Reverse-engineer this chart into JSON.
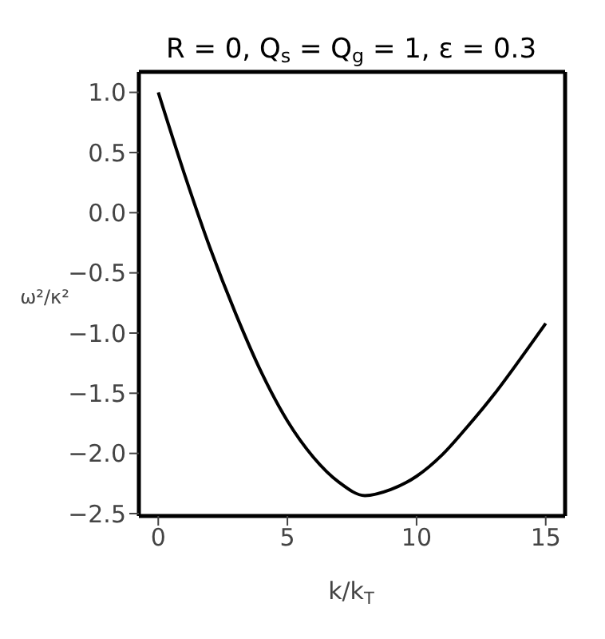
{
  "chart_data": {
    "type": "line",
    "title": "R = 0, Q$_{s}$ = Q$_{g}$ = 1, ε = 0.3",
    "xlabel": "k/k$_{T}$",
    "ylabel": "ω²/κ²",
    "x": [
      0,
      1,
      2,
      3,
      4,
      5,
      6,
      7,
      8,
      9,
      10,
      11,
      12,
      13,
      14,
      15
    ],
    "series": [
      {
        "color": "#000000",
        "values": [
          1.0,
          0.33,
          -0.29,
          -0.84,
          -1.33,
          -1.73,
          -2.03,
          -2.24,
          -2.35,
          -2.3,
          -2.19,
          -2.01,
          -1.77,
          -1.51,
          -1.22,
          -0.92
        ]
      }
    ],
    "xlim": [
      -0.75,
      15.75
    ],
    "xticks": [
      0,
      5,
      10,
      15
    ],
    "ylim": [
      -2.52,
      1.17
    ],
    "yticks": [
      {
        "value": 1,
        "label": "1.0"
      },
      {
        "value": 0.5,
        "label": "0.5"
      },
      {
        "value": 0,
        "label": "0.0"
      },
      {
        "value": -0.5,
        "label": "−0.5"
      },
      {
        "value": -1,
        "label": "−1.0"
      },
      {
        "value": -1.5,
        "label": "−1.5"
      },
      {
        "value": -2,
        "label": "−2.0"
      },
      {
        "value": -2.5,
        "label": "−2.5"
      }
    ],
    "grid": false,
    "legend": false,
    "marker": "none",
    "line_style": "solid"
  }
}
